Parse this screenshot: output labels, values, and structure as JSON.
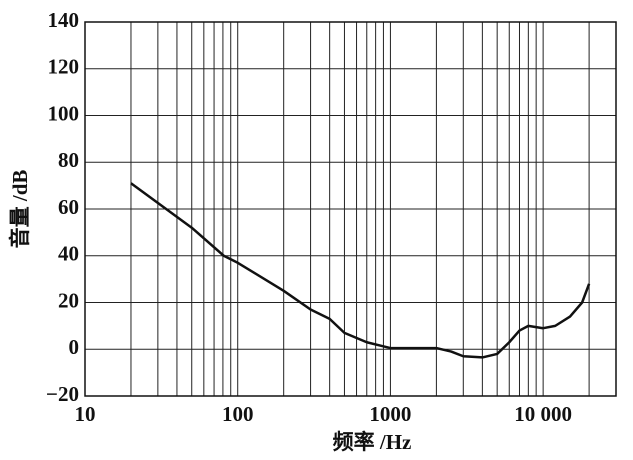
{
  "chart_data": {
    "type": "line",
    "x_label": "频率 /Hz",
    "y_label": "音量 /dB",
    "log_x": true,
    "grid": true,
    "x": [
      20,
      50,
      81,
      100,
      200,
      300,
      400,
      500,
      700,
      1000,
      2000,
      2500,
      3000,
      4000,
      5000,
      6000,
      7000,
      8000,
      10000,
      12000,
      15000,
      18000,
      20000
    ],
    "series": [
      {
        "color": "#111111",
        "values": [
          71,
          52,
          40,
          37,
          25,
          17,
          13,
          7,
          3,
          0.5,
          0.5,
          -1,
          -3,
          -3.5,
          -2,
          3,
          8,
          10,
          9,
          10,
          14,
          20,
          28
        ]
      }
    ],
    "xlim": [
      10,
      30000
    ],
    "ylim": [
      -20,
      140
    ],
    "xticks": [
      10,
      100,
      1000,
      {
        "value": 10000,
        "label": "10 000"
      }
    ],
    "xminor": [
      20,
      30,
      40,
      50,
      60,
      70,
      80,
      90,
      200,
      300,
      400,
      500,
      600,
      700,
      800,
      900,
      2000,
      3000,
      4000,
      5000,
      6000,
      7000,
      8000,
      9000,
      20000
    ],
    "yticks": [
      {
        "value": -20,
        "label": "−20"
      },
      0,
      20,
      40,
      60,
      80,
      100,
      120,
      140
    ]
  }
}
